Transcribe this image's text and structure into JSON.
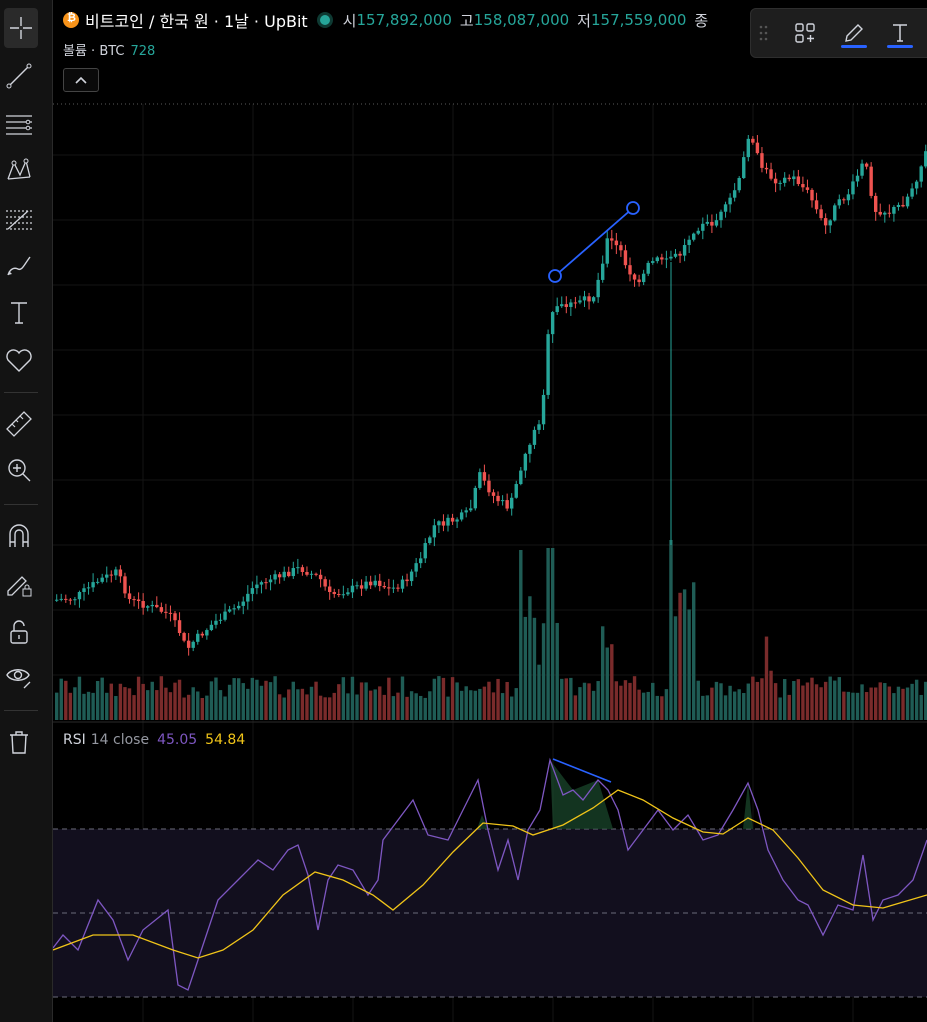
{
  "header": {
    "symbol_title": "비트코인 / 한국 원 · 1날 · UpBit",
    "ohlc": [
      {
        "label": "시",
        "value": "157,892,000"
      },
      {
        "label": "고",
        "value": "158,087,000"
      },
      {
        "label": "저",
        "value": "157,559,000"
      },
      {
        "label": "종",
        "value": ""
      }
    ]
  },
  "volume_legend": {
    "label": "볼륨 · BTC",
    "value": "728"
  },
  "rsi_legend": {
    "name": "RSI",
    "params": "14 close",
    "rsi_value": "45.05",
    "ma_value": "54.84"
  },
  "colors": {
    "up": "#26a69a",
    "down": "#ef5350",
    "rsi_line": "#7e57c2",
    "rsi_ma": "#f0c419",
    "trendline": "#2962ff"
  },
  "toolbar": {
    "tools": [
      "crosshair-icon",
      "trendline-icon",
      "horizontal-lines-icon",
      "pattern-icon",
      "fib-icon",
      "brush-icon",
      "text-icon",
      "heart-icon",
      "ruler-icon",
      "zoom-icon",
      "magnet-icon",
      "lock-drawing-icon",
      "unlock-icon",
      "eye-icon",
      "trash-icon"
    ]
  },
  "float_toolbar": {
    "items": [
      "drag-handle-icon",
      "add-object-icon",
      "pencil-icon",
      "text-icon"
    ]
  },
  "chart_data": {
    "type": "candlestick",
    "rsi_levels": [
      70,
      50,
      30
    ]
  }
}
